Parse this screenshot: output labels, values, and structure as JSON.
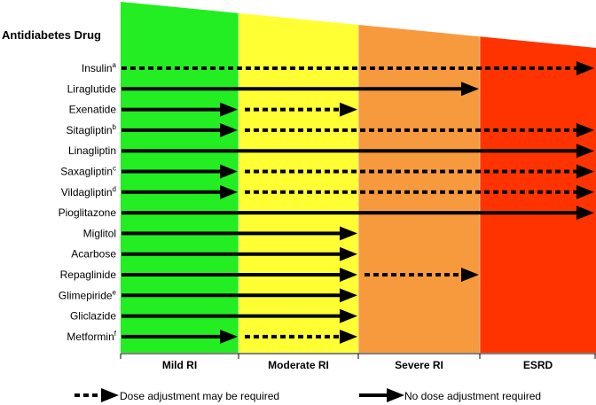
{
  "header": "Antidiabetes Drug",
  "stages": [
    {
      "label": "Mild RI",
      "color": "#22ee22"
    },
    {
      "label": "Moderate RI",
      "color": "#ffff33"
    },
    {
      "label": "Severe RI",
      "color": "#f79a3e"
    },
    {
      "label": "ESRD",
      "color": "#ff3300"
    }
  ],
  "drugs": [
    {
      "name": "Insulin",
      "sup": "a",
      "segments": [
        {
          "style": "dotted",
          "from": 0,
          "to": 4
        }
      ]
    },
    {
      "name": "Liraglutide",
      "sup": "",
      "segments": [
        {
          "style": "solid",
          "from": 0,
          "to": 3
        }
      ]
    },
    {
      "name": "Exenatide",
      "sup": "",
      "segments": [
        {
          "style": "solid",
          "from": 0,
          "to": 1
        },
        {
          "style": "dotted",
          "from": 1,
          "to": 2
        }
      ]
    },
    {
      "name": "Sitagliptin",
      "sup": "b",
      "segments": [
        {
          "style": "solid",
          "from": 0,
          "to": 1
        },
        {
          "style": "dotted",
          "from": 1,
          "to": 4
        }
      ]
    },
    {
      "name": "Linagliptin",
      "sup": "",
      "segments": [
        {
          "style": "solid",
          "from": 0,
          "to": 4
        }
      ]
    },
    {
      "name": "Saxagliptin",
      "sup": "c",
      "segments": [
        {
          "style": "solid",
          "from": 0,
          "to": 1
        },
        {
          "style": "dotted",
          "from": 1,
          "to": 4
        }
      ]
    },
    {
      "name": "Vildagliptin",
      "sup": "d",
      "segments": [
        {
          "style": "solid",
          "from": 0,
          "to": 1
        },
        {
          "style": "dotted",
          "from": 1,
          "to": 4
        }
      ]
    },
    {
      "name": "Pioglitazone",
      "sup": "",
      "segments": [
        {
          "style": "solid",
          "from": 0,
          "to": 4
        }
      ]
    },
    {
      "name": "Miglitol",
      "sup": "",
      "segments": [
        {
          "style": "solid",
          "from": 0,
          "to": 2
        }
      ]
    },
    {
      "name": "Acarbose",
      "sup": "",
      "segments": [
        {
          "style": "solid",
          "from": 0,
          "to": 2
        }
      ]
    },
    {
      "name": "Repaglinide",
      "sup": "",
      "segments": [
        {
          "style": "solid",
          "from": 0,
          "to": 2
        },
        {
          "style": "dotted",
          "from": 2,
          "to": 3
        }
      ]
    },
    {
      "name": "Glimepiride",
      "sup": "e",
      "segments": [
        {
          "style": "solid",
          "from": 0,
          "to": 2
        }
      ]
    },
    {
      "name": "Gliclazide",
      "sup": "",
      "segments": [
        {
          "style": "solid",
          "from": 0,
          "to": 2
        }
      ]
    },
    {
      "name": "Metformin",
      "sup": "f",
      "segments": [
        {
          "style": "solid",
          "from": 0,
          "to": 1
        },
        {
          "style": "dotted",
          "from": 1,
          "to": 2
        }
      ]
    }
  ],
  "legend": {
    "dotted": "Dose adjustment may be required",
    "solid": "No dose adjustment required"
  }
}
